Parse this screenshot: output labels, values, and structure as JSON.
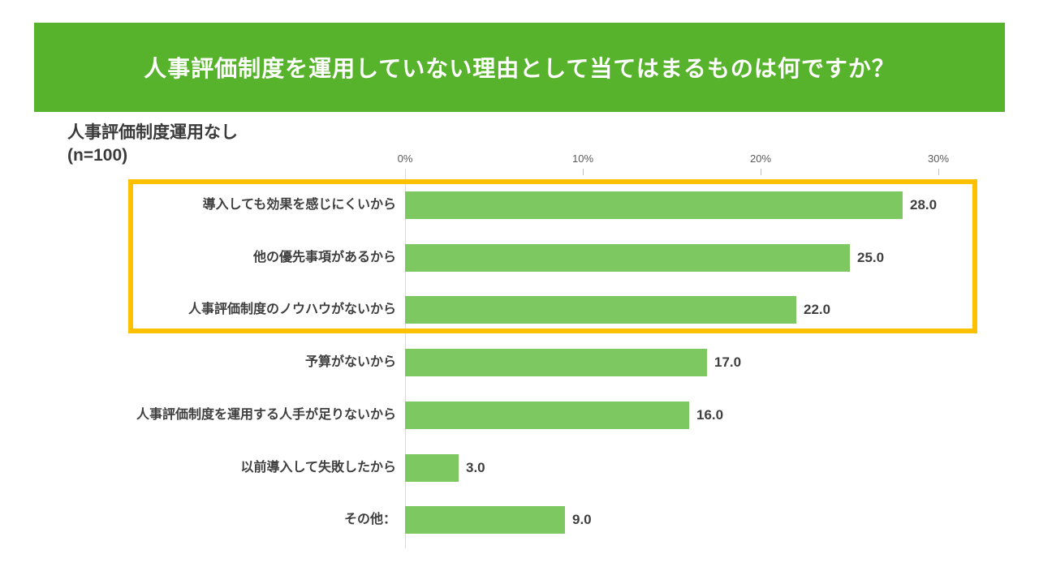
{
  "header": {
    "title": "人事評価制度を運用していない理由として当てはまるものは何ですか？",
    "bg_color": "#57B32B",
    "text_color": "#FFFFFF"
  },
  "subtitle": {
    "line1": "人事評価制度運用なし",
    "line2": "(n=100)"
  },
  "chart_data": {
    "type": "bar",
    "orientation": "horizontal",
    "title": "人事評価制度を運用していない理由として当てはまるものは何ですか？",
    "subtitle": "人事評価制度運用なし (n=100)",
    "categories": [
      "導入しても効果を感じにくいから",
      "他の優先事項があるから",
      "人事評価制度のノウハウがないから",
      "予算がないから",
      "人事評価制度を運用する人手が足りないから",
      "以前導入して失敗したから",
      "その他："
    ],
    "values": [
      28.0,
      25.0,
      22.0,
      17.0,
      16.0,
      3.0,
      9.0
    ],
    "value_labels": [
      "28.0",
      "25.0",
      "22.0",
      "17.0",
      "16.0",
      "3.0",
      "9.0"
    ],
    "xlabel": "",
    "ylabel": "",
    "xlim": [
      0,
      30
    ],
    "x_tick_values": [
      0,
      10,
      20,
      30
    ],
    "x_tick_labels": [
      "0%",
      "10%",
      "20%",
      "30%"
    ],
    "grid": false,
    "legend": "none",
    "bar_color": "#7EC862",
    "value_label_color": "#3F3F3F",
    "category_label_color": "#3F3F3F",
    "tick_label_color": "#595959",
    "axis_line_color": "#D9D9D9",
    "highlight": {
      "rows": [
        0,
        1,
        2
      ],
      "border_color": "#FFC000"
    }
  }
}
